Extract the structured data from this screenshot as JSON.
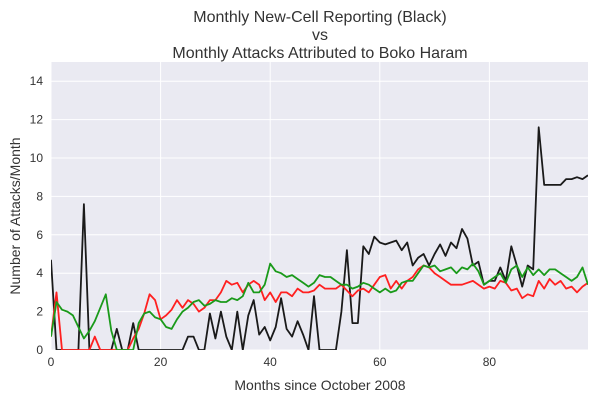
{
  "chart_data": {
    "type": "line",
    "title": [
      "Monthly New-Cell Reporting (Black)",
      "vs",
      "Monthly Attacks Attributed to Boko Haram"
    ],
    "xlabel": "Months since October 2008",
    "ylabel": "Number of Attacks/Month",
    "xlim": [
      0,
      98
    ],
    "ylim": [
      0,
      15
    ],
    "xticks": [
      0,
      20,
      40,
      60,
      80
    ],
    "yticks": [
      0,
      2,
      4,
      6,
      8,
      10,
      12,
      14
    ],
    "grid": true,
    "background": "#eaeaf2",
    "series": [
      {
        "color": "#1a1a1a",
        "x": [
          0,
          1,
          2,
          3,
          4,
          5,
          6,
          7,
          8,
          9,
          10,
          11,
          12,
          13,
          14,
          15,
          16,
          17,
          18,
          19,
          20,
          21,
          22,
          23,
          24,
          25,
          26,
          27,
          28,
          29,
          30,
          31,
          32,
          33,
          34,
          35,
          36,
          37,
          38,
          39,
          40,
          41,
          42,
          43,
          44,
          45,
          46,
          47,
          48,
          49,
          50,
          51,
          52,
          53,
          54,
          55,
          56,
          57,
          58,
          59,
          60,
          61,
          62,
          63,
          64,
          65,
          66,
          67,
          68,
          69,
          70,
          71,
          72,
          73,
          74,
          75,
          76,
          77,
          78,
          79,
          80,
          81,
          82,
          83,
          84,
          85,
          86,
          87,
          88,
          89,
          90,
          91,
          92,
          93,
          94,
          95,
          96,
          97,
          98
        ],
        "y": [
          4.7,
          0,
          0,
          0,
          0,
          0,
          7.6,
          0,
          0,
          0,
          0,
          0,
          1.1,
          0,
          0,
          1.4,
          0,
          0,
          0,
          0,
          0,
          0,
          0,
          0,
          0,
          0.7,
          0.7,
          0,
          0,
          1.9,
          0.6,
          2.0,
          0.7,
          0,
          2.0,
          0,
          1.8,
          2.6,
          0.8,
          1.2,
          0.5,
          1.2,
          2.7,
          1.1,
          0.7,
          1.5,
          0.8,
          0,
          2.8,
          0,
          0,
          0,
          0,
          2.0,
          5.2,
          1.4,
          1.4,
          5.4,
          5.0,
          5.9,
          5.6,
          5.5,
          5.6,
          5.7,
          5.2,
          5.6,
          4.4,
          4.8,
          5.0,
          4.4,
          5.0,
          5.5,
          4.9,
          5.6,
          5.3,
          6.3,
          5.8,
          4.4,
          4.6,
          3.4,
          3.6,
          3.6,
          4.3,
          3.6,
          5.4,
          4.4,
          3.3,
          4.4,
          4.2,
          11.6,
          8.6,
          8.6,
          8.6,
          8.6,
          8.9,
          8.9,
          9.0,
          8.9,
          9.1
        ],
        "y_note_values_only": true
      },
      {
        "color": "#ff2020",
        "x": [
          0,
          1,
          2,
          3,
          4,
          5,
          6,
          7,
          8,
          9,
          10,
          11,
          12,
          13,
          14,
          15,
          16,
          17,
          18,
          19,
          20,
          21,
          22,
          23,
          24,
          25,
          26,
          27,
          28,
          29,
          30,
          31,
          32,
          33,
          34,
          35,
          36,
          37,
          38,
          39,
          40,
          41,
          42,
          43,
          44,
          45,
          46,
          47,
          48,
          49,
          50,
          51,
          52,
          53,
          54,
          55,
          56,
          57,
          58,
          59,
          60,
          61,
          62,
          63,
          64,
          65,
          66,
          67,
          68,
          69,
          70,
          71,
          72,
          73,
          74,
          75,
          76,
          77,
          78,
          79,
          80,
          81,
          82,
          83,
          84,
          85,
          86,
          87,
          88,
          89,
          90,
          91,
          92,
          93,
          94,
          95,
          96,
          97,
          98
        ],
        "y": [
          0.7,
          3.0,
          0,
          0,
          0,
          0,
          0,
          0,
          0.7,
          0,
          0,
          0,
          0,
          0,
          0,
          0.6,
          1.1,
          1.9,
          2.9,
          2.6,
          1.6,
          1.8,
          2.1,
          2.6,
          2.2,
          2.6,
          2.4,
          2.0,
          2.2,
          2.6,
          2.6,
          3.0,
          3.6,
          3.4,
          3.5,
          3.0,
          3.4,
          3.6,
          3.4,
          2.6,
          3.0,
          2.5,
          3.0,
          3.0,
          2.8,
          3.2,
          3.0,
          3.0,
          3.1,
          3.4,
          3.2,
          3.2,
          3.2,
          3.4,
          3.1,
          2.8,
          3.1,
          3.2,
          3.0,
          3.4,
          3.8,
          3.9,
          3.2,
          3.6,
          3.2,
          3.6,
          3.8,
          4.2,
          4.4,
          4.3,
          4.0,
          3.8,
          3.6,
          3.4,
          3.4,
          3.4,
          3.5,
          3.6,
          3.4,
          3.2,
          3.3,
          3.2,
          3.6,
          3.5,
          3.1,
          3.2,
          2.7,
          2.9,
          2.8,
          3.6,
          3.2,
          3.7,
          3.4,
          3.6,
          3.2,
          3.3,
          3.0,
          3.3,
          3.5
        ],
        "y_note_values_only": true
      },
      {
        "color": "#1a9a1a",
        "x": [
          0,
          1,
          2,
          3,
          4,
          5,
          6,
          7,
          8,
          9,
          10,
          11,
          12,
          13,
          14,
          15,
          16,
          17,
          18,
          19,
          20,
          21,
          22,
          23,
          24,
          25,
          26,
          27,
          28,
          29,
          30,
          31,
          32,
          33,
          34,
          35,
          36,
          37,
          38,
          39,
          40,
          41,
          42,
          43,
          44,
          45,
          46,
          47,
          48,
          49,
          50,
          51,
          52,
          53,
          54,
          55,
          56,
          57,
          58,
          59,
          60,
          61,
          62,
          63,
          64,
          65,
          66,
          67,
          68,
          69,
          70,
          71,
          72,
          73,
          74,
          75,
          76,
          77,
          78,
          79,
          80,
          81,
          82,
          83,
          84,
          85,
          86,
          87,
          88,
          89,
          90,
          91,
          92,
          93,
          94,
          95,
          96,
          97,
          98
        ],
        "y": [
          0.7,
          2.5,
          2.1,
          2.0,
          1.8,
          1.2,
          0.6,
          1.0,
          1.5,
          2.2,
          2.9,
          1.0,
          0,
          0,
          0,
          0,
          1.4,
          1.9,
          2.0,
          1.7,
          1.6,
          1.2,
          1.1,
          1.6,
          2.0,
          2.2,
          2.5,
          2.6,
          2.3,
          2.4,
          2.6,
          2.5,
          2.5,
          2.7,
          2.6,
          2.8,
          3.5,
          3.0,
          3.0,
          3.4,
          4.5,
          4.1,
          4.0,
          3.8,
          3.9,
          3.7,
          3.5,
          3.3,
          3.5,
          3.9,
          3.8,
          3.8,
          3.6,
          3.4,
          3.4,
          3.2,
          3.3,
          3.5,
          3.4,
          3.2,
          3.0,
          3.2,
          3.0,
          3.1,
          3.5,
          3.6,
          3.6,
          4.0,
          4.4,
          4.3,
          4.4,
          4.1,
          4.2,
          4.3,
          4.0,
          4.3,
          4.2,
          4.5,
          4.1,
          3.4,
          3.6,
          3.8,
          4.0,
          3.5,
          4.2,
          4.4,
          3.8,
          4.3,
          3.9,
          4.2,
          3.9,
          4.2,
          4.2,
          4.0,
          3.8,
          3.6,
          3.8,
          4.3,
          3.4
        ],
        "y_note_values_only": true
      }
    ]
  }
}
